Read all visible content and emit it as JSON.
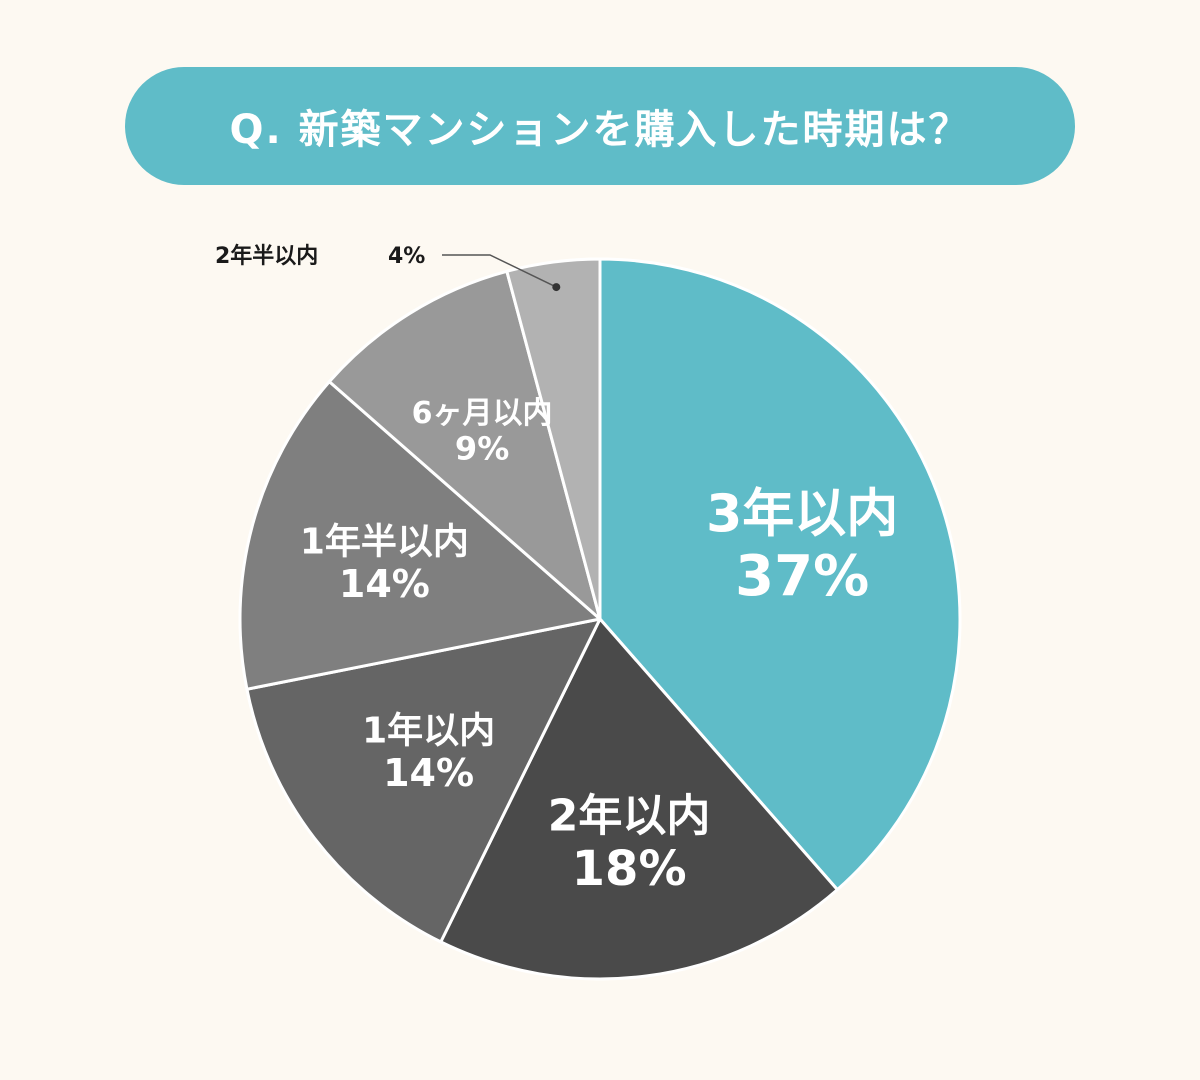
{
  "title": "Q. 新築マンションを購入した時期は？",
  "chart_data": {
    "type": "pie",
    "title": "Q. 新築マンションを購入した時期は？",
    "slices": [
      {
        "label": "3年以内",
        "value": 37,
        "value_label": "37%",
        "color": "#5fbcc8"
      },
      {
        "label": "2年以内",
        "value": 18,
        "value_label": "18%",
        "color": "#4a4a4a"
      },
      {
        "label": "1年以内",
        "value": 14,
        "value_label": "14%",
        "color": "#656565"
      },
      {
        "label": "1年半以内",
        "value": 14,
        "value_label": "14%",
        "color": "#7f7f7f"
      },
      {
        "label": "6ヶ月以内",
        "value": 9,
        "value_label": "9%",
        "color": "#999999"
      },
      {
        "label": "2年半以内",
        "value": 4,
        "value_label": "4%",
        "color": "#b2b2b2"
      }
    ],
    "legend": "none"
  }
}
